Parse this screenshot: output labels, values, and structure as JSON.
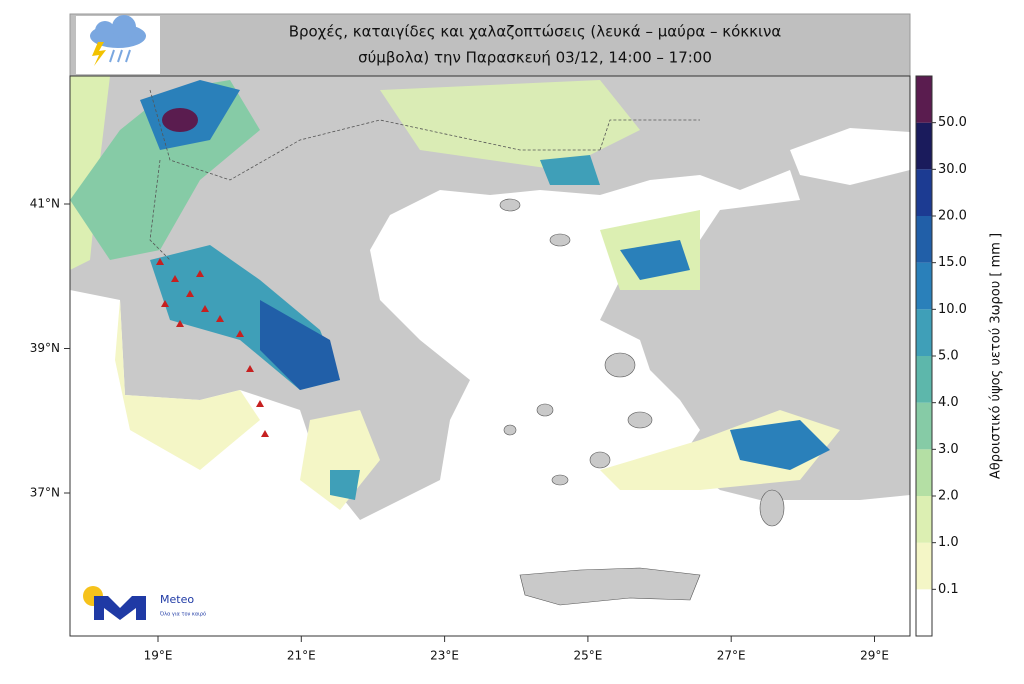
{
  "header": {
    "title_line1": "Βροχές, καταιγίδες και χαλαζοπτώσεις (λευκά – μαύρα – κόκκινα",
    "title_line2": "σύμβολα) την Παρασκευή 03/12, 14:00 – 17:00"
  },
  "map": {
    "lat_labels": [
      "41°N",
      "39°N",
      "37°N"
    ],
    "lon_labels": [
      "19°E",
      "21°E",
      "23°E",
      "25°E",
      "27°E",
      "29°E"
    ]
  },
  "colorbar": {
    "title": "Αθροιστικό ύψος υετού 3ωρου [ mm ]",
    "labels": [
      "0.1",
      "1.0",
      "2.0",
      "3.0",
      "4.0",
      "5.0",
      "10.0",
      "15.0",
      "20.0",
      "30.0",
      "50.0"
    ],
    "colors": [
      "#ffffff",
      "#f4f6c6",
      "#dcefb2",
      "#b4dfa4",
      "#86cba6",
      "#5db7ab",
      "#3f9fb8",
      "#2a80ba",
      "#215fa8",
      "#1c3b92",
      "#1a1b5c",
      "#5a1c4f"
    ]
  },
  "logo": {
    "name": "Meteo",
    "tagline": "Όλα για τον καιρό"
  }
}
